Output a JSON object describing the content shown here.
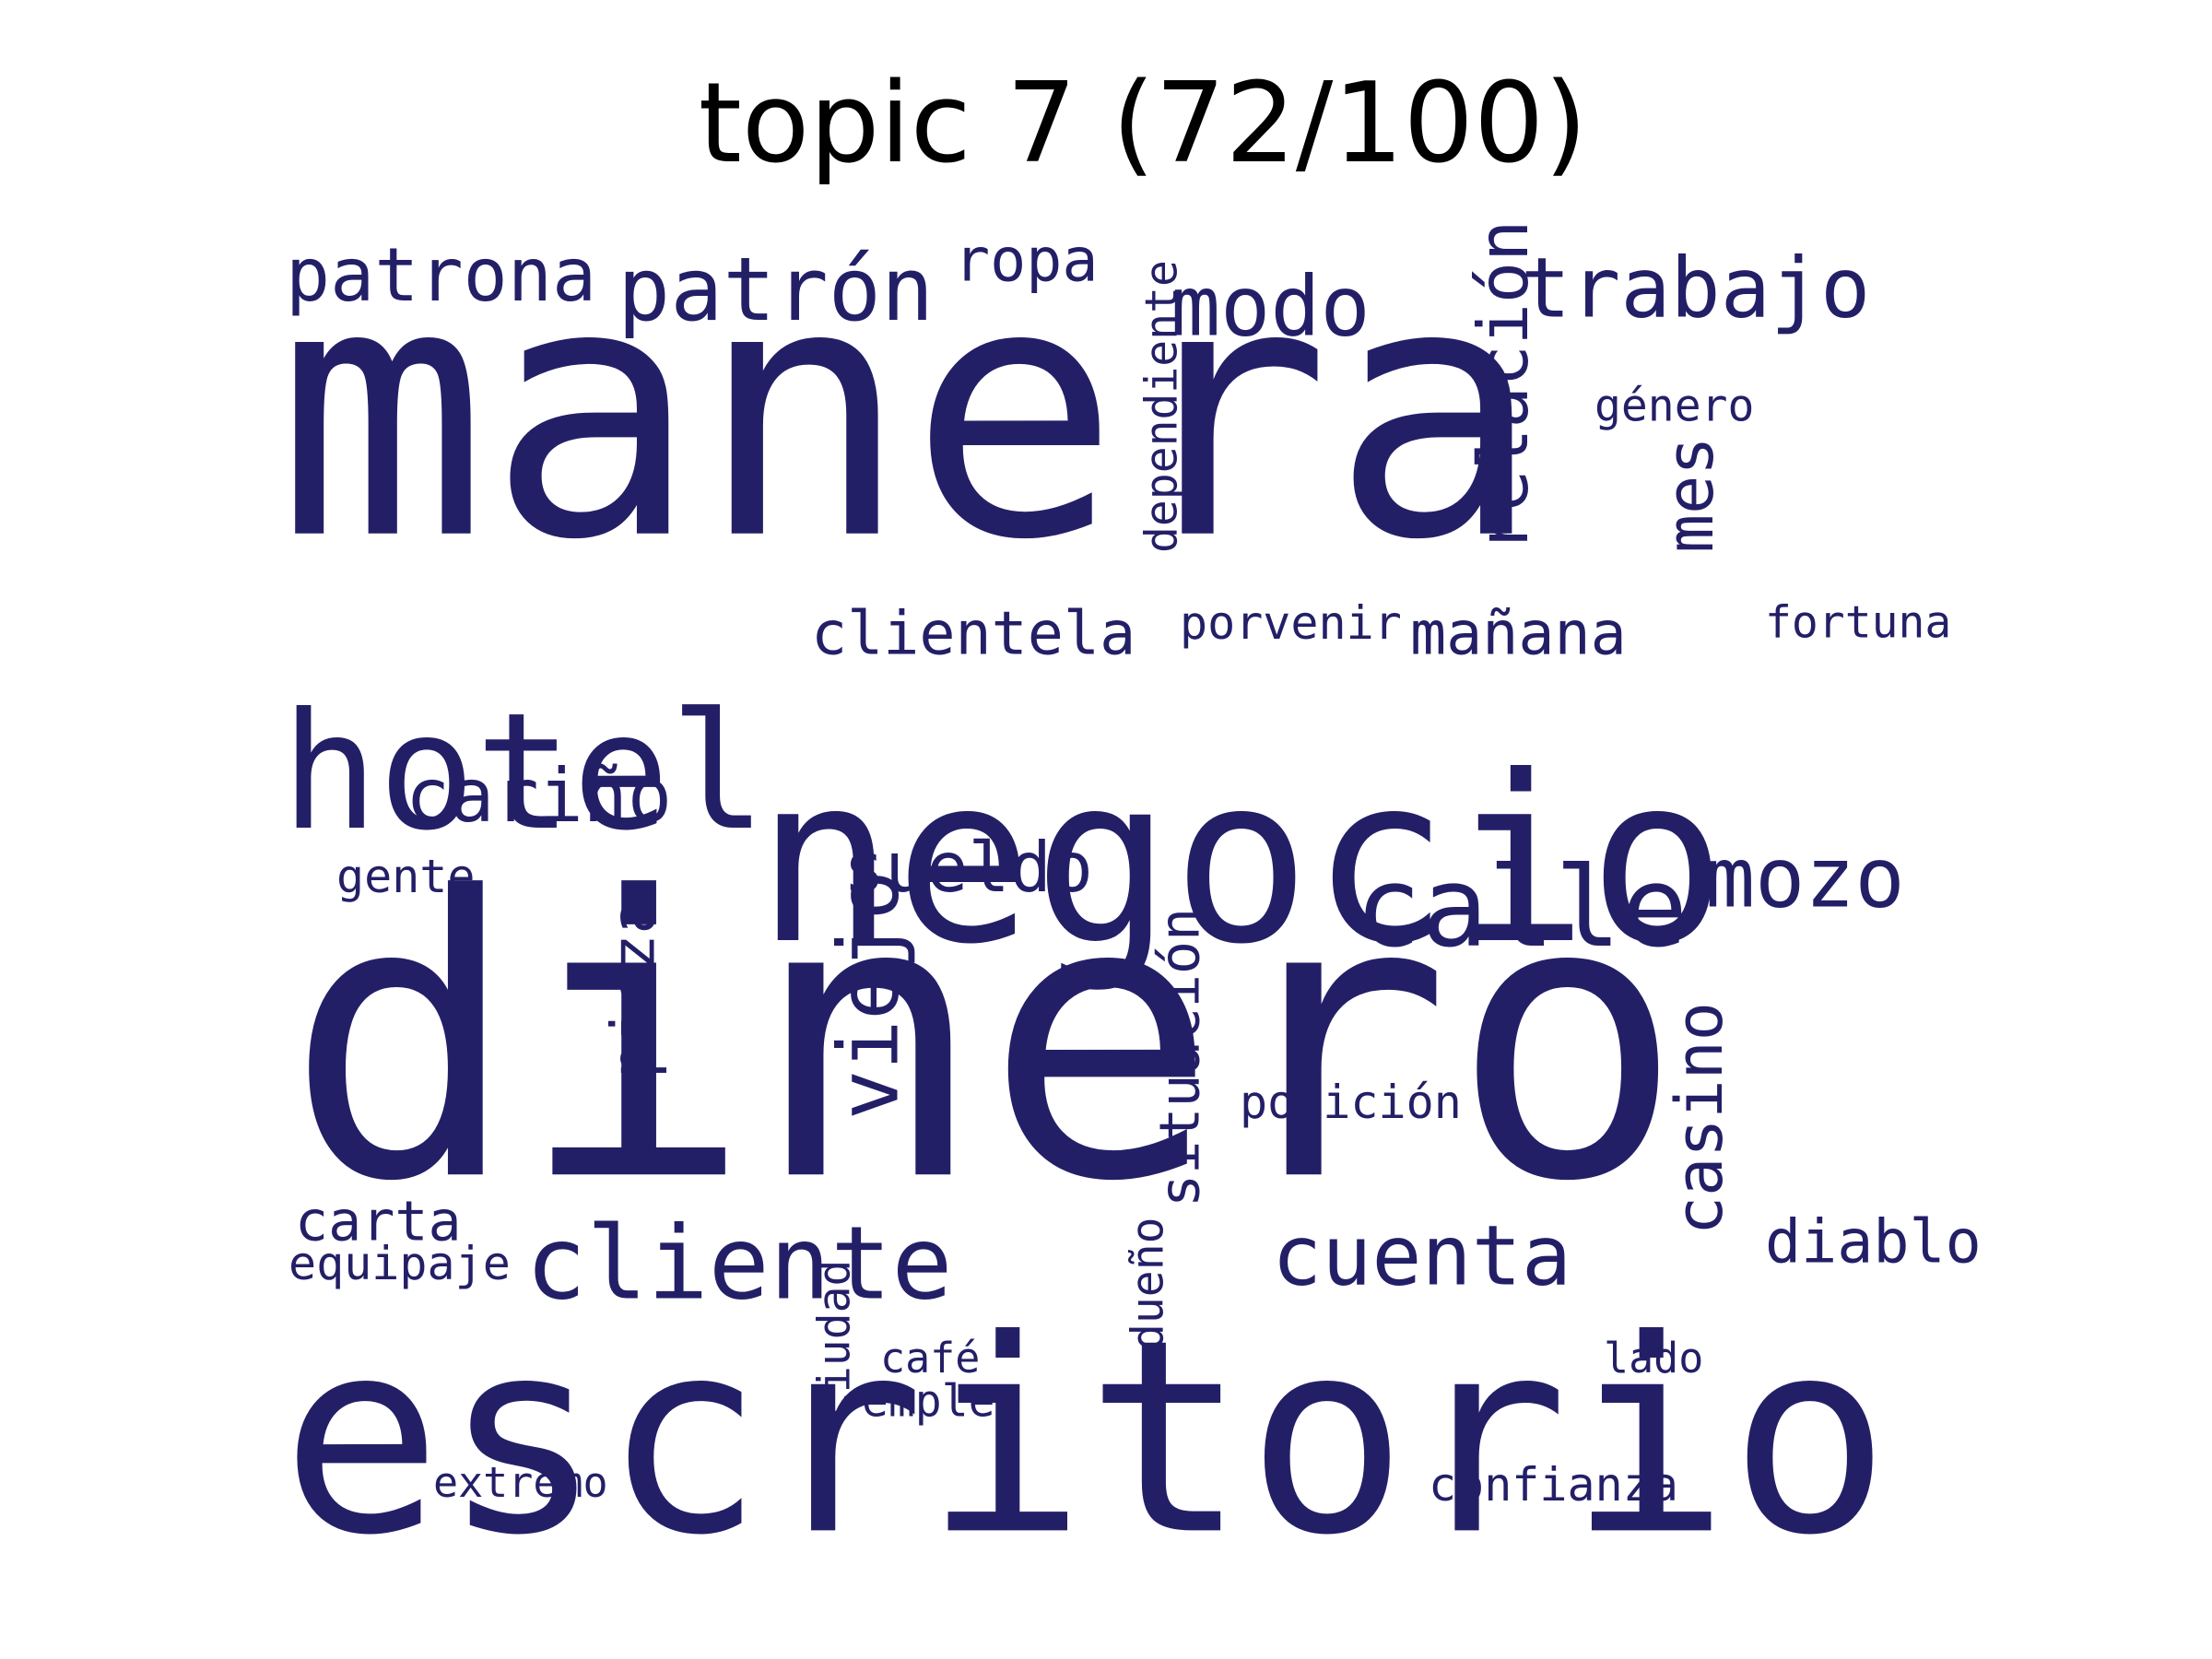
{
  "title": "topic 7 (72/100)",
  "colors": {
    "word": "#231f67",
    "background": "#ffffff",
    "title": "#000000"
  },
  "words": [
    {
      "text": "manera",
      "orientation": "horizontal"
    },
    {
      "text": "dinero",
      "orientation": "horizontal"
    },
    {
      "text": "escritorio",
      "orientation": "horizontal"
    },
    {
      "text": "negocio",
      "orientation": "horizontal"
    },
    {
      "text": "hotel",
      "orientation": "horizontal"
    },
    {
      "text": "patrón",
      "orientation": "horizontal"
    },
    {
      "text": "patrona",
      "orientation": "horizontal"
    },
    {
      "text": "trabajo",
      "orientation": "horizontal"
    },
    {
      "text": "modo",
      "orientation": "horizontal"
    },
    {
      "text": "ropa",
      "orientation": "horizontal"
    },
    {
      "text": "relación",
      "orientation": "vertical"
    },
    {
      "text": "dependiente",
      "orientation": "vertical"
    },
    {
      "text": "mes",
      "orientation": "vertical"
    },
    {
      "text": "género",
      "orientation": "horizontal"
    },
    {
      "text": "clientela",
      "orientation": "horizontal"
    },
    {
      "text": "porvenir",
      "orientation": "horizontal"
    },
    {
      "text": "mañana",
      "orientation": "horizontal"
    },
    {
      "text": "fortuna",
      "orientation": "horizontal"
    },
    {
      "text": "cariño",
      "orientation": "horizontal"
    },
    {
      "text": "viejo",
      "orientation": "vertical"
    },
    {
      "text": "sueldo",
      "orientation": "horizontal"
    },
    {
      "text": "calle",
      "orientation": "horizontal"
    },
    {
      "text": "mozo",
      "orientation": "horizontal"
    },
    {
      "text": "gente",
      "orientation": "horizontal"
    },
    {
      "text": "pieza",
      "orientation": "vertical"
    },
    {
      "text": "situación",
      "orientation": "vertical"
    },
    {
      "text": "casino",
      "orientation": "vertical"
    },
    {
      "text": "posición",
      "orientation": "horizontal"
    },
    {
      "text": "cliente",
      "orientation": "horizontal"
    },
    {
      "text": "cuenta",
      "orientation": "horizontal"
    },
    {
      "text": "diablo",
      "orientation": "horizontal"
    },
    {
      "text": "carta",
      "orientation": "horizontal"
    },
    {
      "text": "equipaje",
      "orientation": "horizontal"
    },
    {
      "text": "dueño",
      "orientation": "vertical"
    },
    {
      "text": "ciudad",
      "orientation": "vertical"
    },
    {
      "text": "café",
      "orientation": "horizontal"
    },
    {
      "text": "empleo",
      "orientation": "horizontal"
    },
    {
      "text": "lado",
      "orientation": "horizontal"
    },
    {
      "text": "extremo",
      "orientation": "horizontal"
    },
    {
      "text": "confianza",
      "orientation": "horizontal"
    }
  ]
}
